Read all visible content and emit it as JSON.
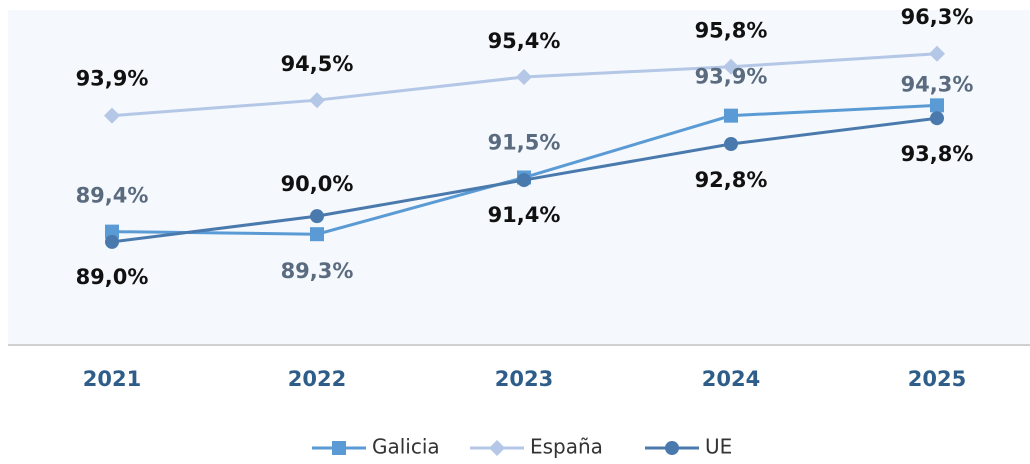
{
  "chart_data": {
    "type": "line",
    "categories": [
      "2021",
      "2022",
      "2023",
      "2024",
      "2025"
    ],
    "series": [
      {
        "name": "Galicia",
        "color": "#5b9bd5",
        "marker": "square",
        "values": [
          89.4,
          89.3,
          91.5,
          93.9,
          94.3
        ],
        "value_labels": [
          "89,4%",
          "89,3%",
          "91,5%",
          "93,9%",
          "94,3%"
        ]
      },
      {
        "name": "España",
        "color": "#b4c7e7",
        "marker": "diamond",
        "values": [
          93.9,
          94.5,
          95.4,
          95.8,
          96.3
        ],
        "value_labels": [
          "93,9%",
          "94,5%",
          "95,4%",
          "95,8%",
          "96,3%"
        ]
      },
      {
        "name": "UE",
        "color": "#4a7aad",
        "marker": "circle",
        "values": [
          89.0,
          90.0,
          91.4,
          92.8,
          93.8
        ],
        "value_labels": [
          "89,0%",
          "90,0%",
          "91,4%",
          "92,8%",
          "93,8%"
        ]
      }
    ],
    "ylim": [
      85,
      98
    ],
    "legend": "bottom"
  }
}
